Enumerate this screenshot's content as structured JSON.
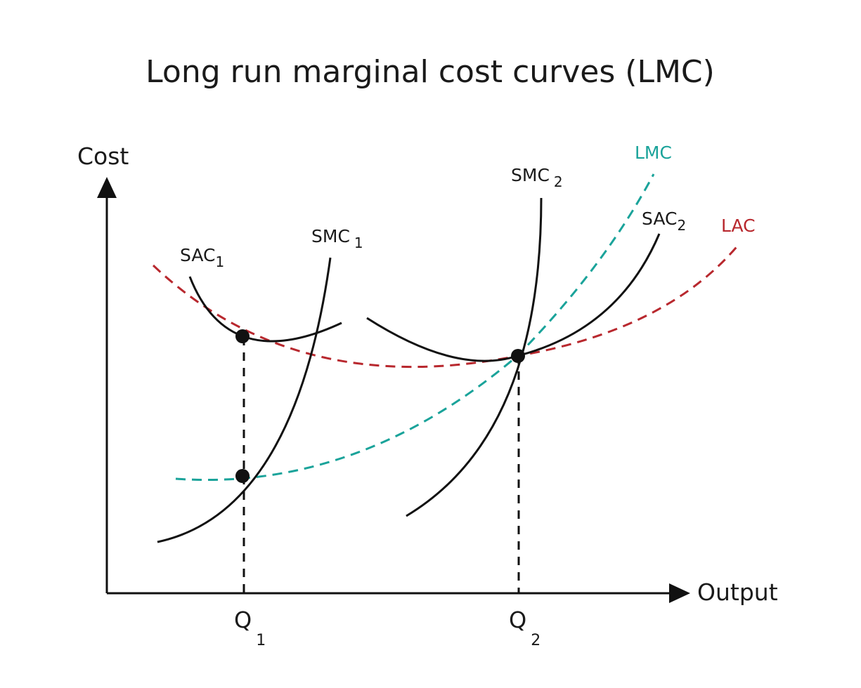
{
  "title": "Long run marginal cost curves (LMC)",
  "axes": {
    "y_label": "Cost",
    "x_label": "Output"
  },
  "curves": {
    "sac1": {
      "name": "SAC",
      "sub": "1"
    },
    "smc1": {
      "name": "SMC",
      "sub": "1"
    },
    "smc2": {
      "name": "SMC",
      "sub": "2"
    },
    "sac2": {
      "name": "SAC",
      "sub": "2"
    },
    "lmc": {
      "name": "LMC"
    },
    "lac": {
      "name": "LAC"
    }
  },
  "quantities": {
    "q1": {
      "name": "Q",
      "sub": "1"
    },
    "q2": {
      "name": "Q",
      "sub": "2"
    }
  },
  "colors": {
    "lmc": "#1aa39a",
    "lac": "#b8282e",
    "curve": "#111111",
    "text": "#1a1a1a"
  }
}
